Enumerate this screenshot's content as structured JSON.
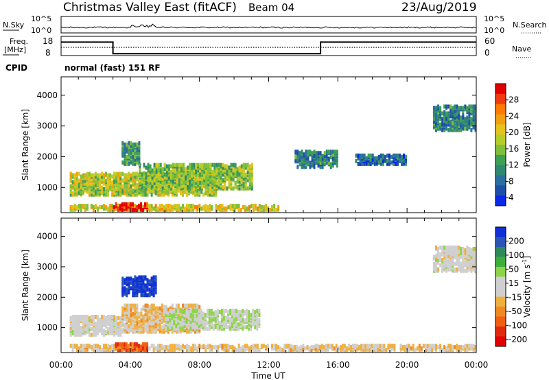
{
  "header": {
    "station": "Christmas Valley East (fitACF)",
    "beam": "Beam 04",
    "date": "23/Aug/2019"
  },
  "left_labels": {
    "nsky": "N.Sky",
    "freq": "Freq.",
    "freq_unit": "[MHz]",
    "cpid": "CPID"
  },
  "right_labels": {
    "nsearch": "N.Search",
    "nave": "Nave"
  },
  "cpid_text": "normal (fast) 151 RF",
  "colorbars": {
    "power": {
      "title": "Power [dB]",
      "ticks": [
        "28",
        "24",
        "20",
        "16",
        "12",
        "8",
        "4"
      ],
      "colors": [
        "#e00000",
        "#f03a10",
        "#ff7a00",
        "#f0a010",
        "#e6c21c",
        "#b6cc28",
        "#7fbf3a",
        "#3f9f55",
        "#2f8870",
        "#2a6fa0",
        "#1e4fa8",
        "#0a28e6"
      ]
    },
    "velocity": {
      "title_line": "Velocity [m s",
      "title_sup": "-1",
      "title_end": "]",
      "ticks": [
        "200",
        "100",
        "50",
        "15",
        "-15",
        "-50",
        "-100",
        "-200"
      ],
      "colors": [
        "#1030d8",
        "#2a55b5",
        "#2f8a5a",
        "#3cae3c",
        "#8ed44a",
        "#cfcfcf",
        "#cfcfcf",
        "#f0b040",
        "#f08a20",
        "#f06010",
        "#e02a10",
        "#e00000"
      ]
    }
  },
  "axes": {
    "ylabel": "Slant Range [km]",
    "yticks": [
      "4000",
      "3000",
      "2000",
      "1000"
    ],
    "xlabel": "Time UT",
    "xticks": [
      "00:00",
      "04:00",
      "08:00",
      "12:00",
      "16:00",
      "20:00",
      "00:00"
    ]
  },
  "summary_ticks": {
    "nsky_top": "10^5",
    "nsky_bottom": "10^0",
    "freq_top": "18",
    "freq_bottom": "8",
    "nsearch_top": "10^5",
    "nsearch_bottom": "10^0",
    "nave_top": "60",
    "nave_bottom": "0"
  },
  "chart_data": [
    {
      "type": "line",
      "series": [
        {
          "name": "Freq.",
          "x": [
            0,
            3,
            3,
            15,
            15,
            24
          ],
          "values": [
            15,
            15,
            9,
            9,
            15,
            15
          ]
        }
      ],
      "x_unit": "hours UT",
      "xlim": [
        0,
        24
      ],
      "ylim": [
        8,
        18
      ]
    },
    {
      "type": "heatmap",
      "title": "Power [dB]",
      "xlabel": "Time UT",
      "ylabel": "Slant Range [km]",
      "xlim": [
        0,
        24
      ],
      "ylim": [
        180,
        4600
      ],
      "zlim": [
        0,
        30
      ],
      "regions": [
        {
          "t0": 0.5,
          "t1": 12.5,
          "r0": 200,
          "r1": 350,
          "power": 18
        },
        {
          "t0": 3.0,
          "t1": 5.0,
          "r0": 200,
          "r1": 400,
          "power": 28
        },
        {
          "t0": 0.5,
          "t1": 9.0,
          "r0": 700,
          "r1": 1400,
          "power": 16
        },
        {
          "t0": 4.5,
          "t1": 11.0,
          "r0": 900,
          "r1": 1700,
          "power": 14
        },
        {
          "t0": 3.5,
          "t1": 4.5,
          "r0": 1700,
          "r1": 2400,
          "power": 10
        },
        {
          "t0": 13.5,
          "t1": 16.0,
          "r0": 1600,
          "r1": 2100,
          "power": 8
        },
        {
          "t0": 17.0,
          "t1": 20.0,
          "r0": 1700,
          "r1": 2000,
          "power": 6
        },
        {
          "t0": 21.5,
          "t1": 24.0,
          "r0": 2800,
          "r1": 3600,
          "power": 8
        }
      ]
    },
    {
      "type": "heatmap",
      "title": "Velocity [m s-1]",
      "xlabel": "Time UT",
      "ylabel": "Slant Range [km]",
      "xlim": [
        0,
        24
      ],
      "ylim": [
        180,
        4600
      ],
      "zlim": [
        -200,
        200
      ],
      "regions": [
        {
          "t0": 0.5,
          "t1": 24.0,
          "r0": 200,
          "r1": 350,
          "velocity": -30
        },
        {
          "t0": 3.0,
          "t1": 5.0,
          "r0": 200,
          "r1": 400,
          "velocity": -120
        },
        {
          "t0": 0.5,
          "t1": 3.5,
          "r0": 700,
          "r1": 1300,
          "velocity": 0
        },
        {
          "t0": 3.5,
          "t1": 8.0,
          "r0": 800,
          "r1": 1700,
          "velocity": -40
        },
        {
          "t0": 6.0,
          "t1": 11.5,
          "r0": 900,
          "r1": 1500,
          "velocity": 25
        },
        {
          "t0": 3.5,
          "t1": 5.5,
          "r0": 2000,
          "r1": 2600,
          "velocity": 180
        },
        {
          "t0": 21.5,
          "t1": 24.0,
          "r0": 2800,
          "r1": 3600,
          "velocity": 0
        }
      ]
    }
  ]
}
